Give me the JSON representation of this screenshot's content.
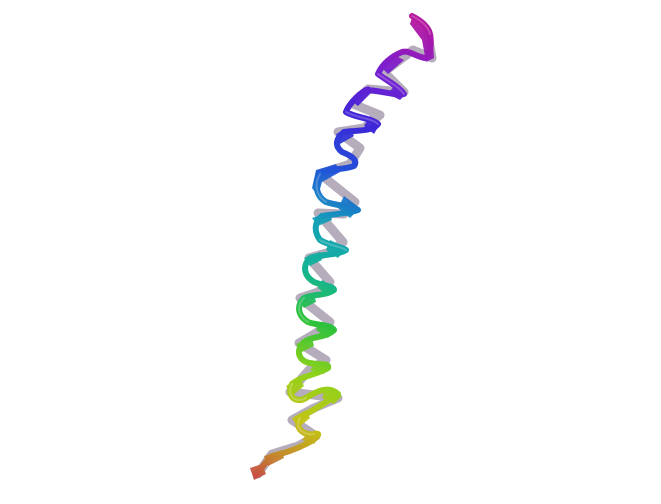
{
  "image": {
    "subject": "protein-helix-ribbon",
    "background_color": "#ffffff",
    "coloring": "rainbow-n-to-c-terminus",
    "colors": {
      "c_terminus": "#b6169e",
      "violet": "#7a1fd0",
      "indigo": "#3e26d8",
      "blue": "#1f57d8",
      "cyan": "#15a0b8",
      "teal": "#13b496",
      "green": "#2ec23a",
      "lime": "#8fd21a",
      "yellow": "#c4c414",
      "orange": "#c48a2a",
      "n_terminus": "#c84a44"
    }
  }
}
